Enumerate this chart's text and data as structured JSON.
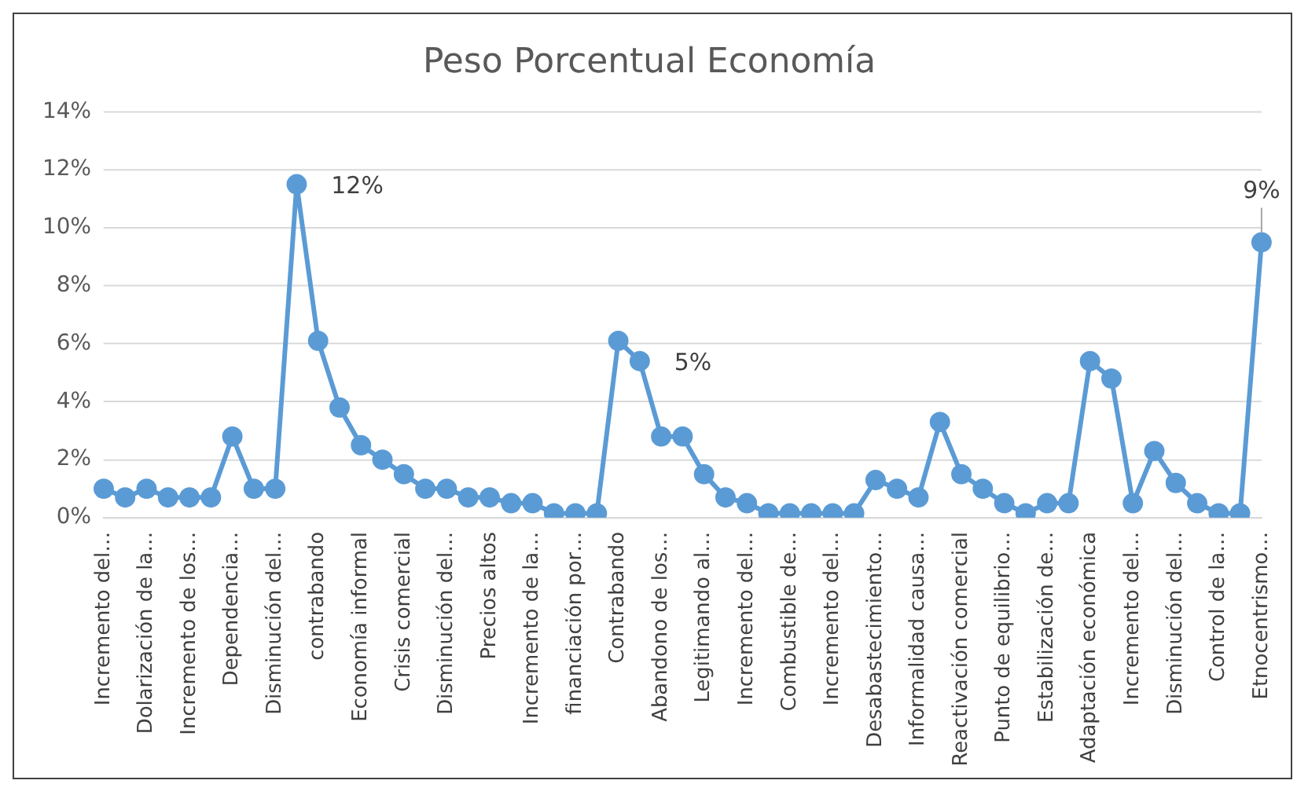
{
  "chart_data": {
    "type": "line",
    "title": "Peso Porcentual Economía",
    "categories": [
      "Incremento del…",
      null,
      "Dolarización de la…",
      null,
      "Incremento de los…",
      null,
      "Dependencia…",
      null,
      "Disminución del…",
      null,
      "contrabando",
      null,
      "Economía informal",
      null,
      "Crisis comercial",
      null,
      "Disminución del…",
      null,
      "Precios altos",
      null,
      "Incremento de la…",
      null,
      "financiación por…",
      null,
      "Contrabando",
      null,
      "Abandono de los…",
      null,
      "Legitimando al…",
      null,
      "Incremento del…",
      null,
      "Combustible de…",
      null,
      "Incremento del…",
      null,
      "Desabastecimiento…",
      null,
      "Informalidad causa…",
      null,
      "Reactivación comercial",
      null,
      "Punto de equilibrio…",
      null,
      "Estabilización de…",
      null,
      "Adaptación económica",
      null,
      "Incremento del…",
      null,
      "Disminución del…",
      null,
      "Control de la…",
      null,
      "Etnocentrismo…"
    ],
    "series": [
      {
        "color": "#5b9bd5",
        "values": [
          1.0,
          0.7,
          1.0,
          0.7,
          0.7,
          0.7,
          2.8,
          1.0,
          1.0,
          11.5,
          6.1,
          3.8,
          2.5,
          2.0,
          1.5,
          1.0,
          1.0,
          0.7,
          0.7,
          0.5,
          0.5,
          0.15,
          0.15,
          0.15,
          6.1,
          5.4,
          2.8,
          2.8,
          1.5,
          0.7,
          0.5,
          0.15,
          0.15,
          0.15,
          0.15,
          0.15,
          1.3,
          1.0,
          0.7,
          3.3,
          1.5,
          1.0,
          0.5,
          0.15,
          0.5,
          0.5,
          5.4,
          4.8,
          0.5,
          2.3,
          1.2,
          0.5,
          0.15,
          0.15,
          9.5
        ],
        "value_labels": [
          null,
          null,
          null,
          null,
          null,
          null,
          null,
          null,
          null,
          "12%",
          null,
          null,
          null,
          null,
          null,
          null,
          null,
          null,
          null,
          null,
          null,
          null,
          null,
          null,
          null,
          "5%",
          null,
          null,
          null,
          null,
          null,
          null,
          null,
          null,
          null,
          null,
          null,
          null,
          null,
          null,
          null,
          null,
          null,
          null,
          null,
          null,
          null,
          null,
          null,
          null,
          null,
          null,
          null,
          null,
          "9%"
        ]
      }
    ],
    "ylim": [
      0,
      14
    ],
    "yticks": [
      {
        "value": 0,
        "label": "0%"
      },
      {
        "value": 2,
        "label": "2%"
      },
      {
        "value": 4,
        "label": "4%"
      },
      {
        "value": 6,
        "label": "6%"
      },
      {
        "value": 8,
        "label": "8%"
      },
      {
        "value": 10,
        "label": "10%"
      },
      {
        "value": 12,
        "label": "12%"
      },
      {
        "value": 14,
        "label": "14%"
      }
    ],
    "grid": "y",
    "legend": false,
    "marker": "circle",
    "line_style": "solid"
  }
}
